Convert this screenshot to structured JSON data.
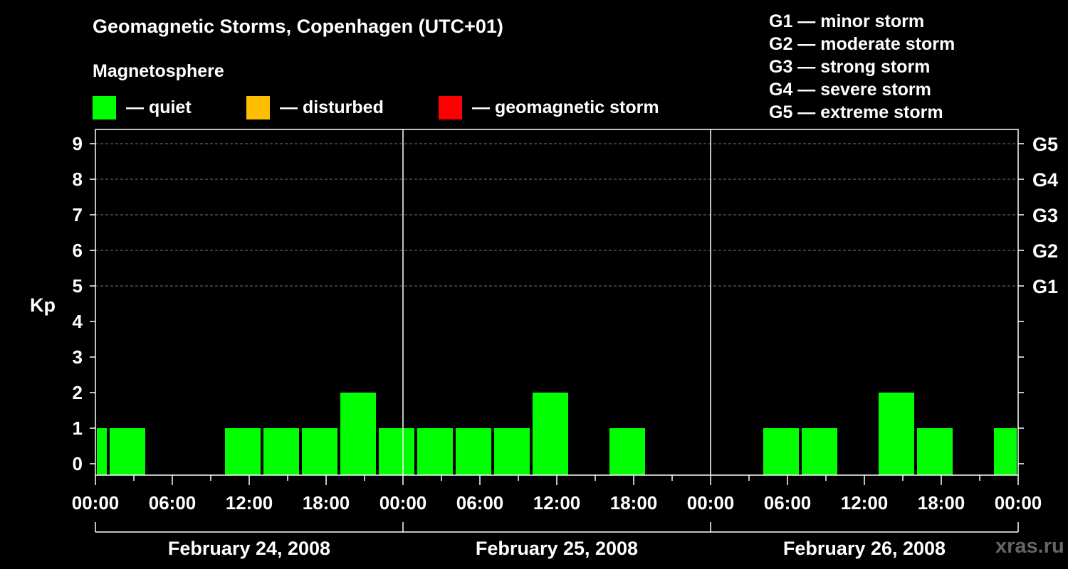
{
  "chart_data": {
    "type": "bar",
    "title": "Geomagnetic Storms, Copenhagen (UTC+01)",
    "subtitle": "Magnetosphere",
    "ylabel": "Kp",
    "ylim": [
      0,
      9
    ],
    "y_ticks": [
      "0",
      "1",
      "2",
      "3",
      "4",
      "5",
      "6",
      "7",
      "8",
      "9"
    ],
    "g_levels": [
      {
        "label": "G1",
        "kp": 5
      },
      {
        "label": "G2",
        "kp": 6
      },
      {
        "label": "G3",
        "kp": 7
      },
      {
        "label": "G4",
        "kp": 8
      },
      {
        "label": "G5",
        "kp": 9
      }
    ],
    "legend": [
      {
        "label": "— quiet",
        "color": "#00ff00"
      },
      {
        "label": "— disturbed",
        "color": "#ffbf00"
      },
      {
        "label": "— geomagnetic storm",
        "color": "#ff0000"
      }
    ],
    "storm_scale": [
      "G1 — minor storm",
      "G2 — moderate storm",
      "G3 — strong storm",
      "G4 — severe storm",
      "G5 — extreme storm"
    ],
    "x_ticks": [
      "00:00",
      "06:00",
      "12:00",
      "18:00",
      "00:00",
      "06:00",
      "12:00",
      "18:00",
      "00:00",
      "06:00",
      "12:00",
      "18:00",
      "00:00"
    ],
    "x_range_hours": [
      0,
      72
    ],
    "days": [
      "February 24, 2008",
      "February 25, 2008",
      "February 26, 2008"
    ],
    "bar_color": "#00ff00",
    "series": [
      {
        "name": "Kp",
        "bars": [
          {
            "start": 0,
            "end": 1,
            "kp": 1
          },
          {
            "start": 1,
            "end": 4,
            "kp": 1
          },
          {
            "start": 10,
            "end": 13,
            "kp": 1
          },
          {
            "start": 13,
            "end": 16,
            "kp": 1
          },
          {
            "start": 16,
            "end": 19,
            "kp": 1
          },
          {
            "start": 19,
            "end": 22,
            "kp": 2
          },
          {
            "start": 22,
            "end": 25,
            "kp": 1
          },
          {
            "start": 25,
            "end": 28,
            "kp": 1
          },
          {
            "start": 28,
            "end": 31,
            "kp": 1
          },
          {
            "start": 31,
            "end": 34,
            "kp": 1
          },
          {
            "start": 34,
            "end": 37,
            "kp": 2
          },
          {
            "start": 40,
            "end": 43,
            "kp": 1
          },
          {
            "start": 52,
            "end": 55,
            "kp": 1
          },
          {
            "start": 55,
            "end": 58,
            "kp": 1
          },
          {
            "start": 61,
            "end": 64,
            "kp": 2
          },
          {
            "start": 64,
            "end": 67,
            "kp": 1
          },
          {
            "start": 70,
            "end": 72,
            "kp": 1
          }
        ]
      }
    ]
  },
  "watermark": "xras.ru"
}
